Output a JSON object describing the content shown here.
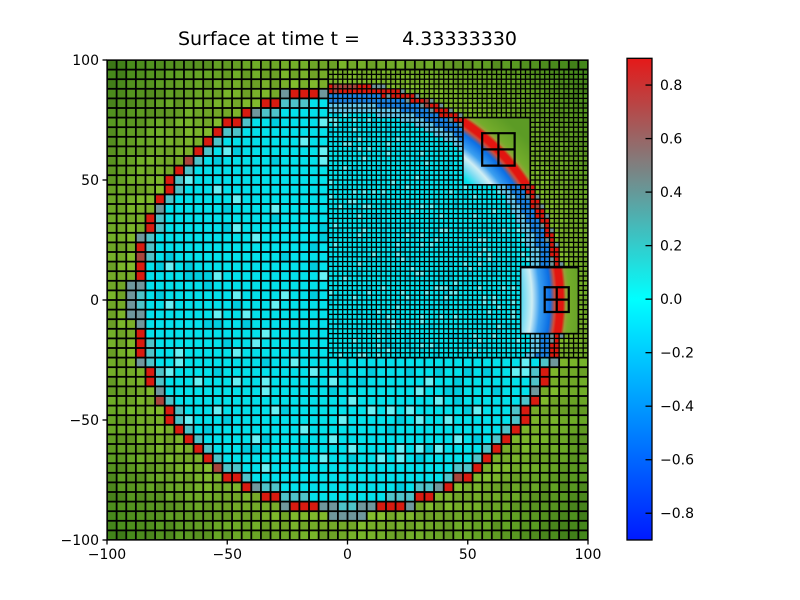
{
  "figure": {
    "title": "Surface at time t =       4.33333330",
    "background": "#ffffff"
  },
  "chart_data": {
    "type": "heatmap",
    "subtype": "adaptive-mesh-refinement pcolor plot (circular bowl / radial wave simulation)",
    "title": "Surface at time t =       4.33333330",
    "time_value": "4.33333330",
    "xlabel": "",
    "ylabel": "",
    "xlim": [
      -100,
      100
    ],
    "ylim": [
      -100,
      100
    ],
    "x_tick_values": [
      -100,
      -50,
      0,
      50,
      100
    ],
    "x_tick_labels": [
      "−100",
      "−50",
      "0",
      "50",
      "100"
    ],
    "y_tick_values": [
      100,
      50,
      0,
      -50,
      -100
    ],
    "y_tick_labels": [
      "100",
      "50",
      "0",
      "−50",
      "−100"
    ],
    "grid_on": true,
    "legend": "none",
    "refinement": {
      "coarse_cell_size": 4,
      "coarse_extent": [
        -100,
        100,
        -100,
        100
      ],
      "fine_cell_size": 2,
      "fine_extent": [
        -8,
        100,
        -24,
        96
      ],
      "smooth_patches": [
        {
          "extent": [
            48,
            76,
            48,
            76
          ]
        },
        {
          "extent": [
            72,
            96,
            -14,
            13.5
          ]
        }
      ],
      "grid_outline_squares": [
        {
          "extent": [
            56,
            69.5,
            56,
            69.5
          ]
        },
        {
          "extent": [
            82,
            92,
            -5,
            5.3
          ]
        }
      ]
    },
    "wave": {
      "center": [
        0,
        0
      ],
      "shore_outer": 90.3,
      "crest_inner": 86.2,
      "coarse_trough_inner": 83.5,
      "fine_trough_inner": 81.8,
      "fine_lead_inner": 78.0,
      "max_corner_radius": 141.4,
      "patch_gradient_stops": [
        [
          0.0,
          "#04e0ea"
        ],
        [
          0.7,
          "#04e0ea"
        ],
        [
          0.735,
          "#7adcf2"
        ],
        [
          0.768,
          "#cfeef4"
        ],
        [
          0.8,
          "#3b9ff0"
        ],
        [
          0.843,
          "#0a6ee4"
        ],
        [
          0.863,
          "#cc4f3a"
        ],
        [
          0.873,
          "#e21510"
        ],
        [
          0.897,
          "#e21510"
        ],
        [
          0.909,
          "#97a03a"
        ],
        [
          0.922,
          "#74ac2b"
        ],
        [
          1.0,
          "#5c9b25"
        ]
      ]
    },
    "colors": {
      "cyan": "#04e0ea",
      "cyan_light": "#66f0f4",
      "cyan_dark": "#00cbdd",
      "teal": "#4ec3c9",
      "trough_blue": "#1b84e4",
      "trough_light": "#62c8ec",
      "crest_red": "#d81b10",
      "crest_dark": "#a8453c",
      "shore_gray": "#6f979c",
      "land_near": "#7cb32b",
      "land_far": "#3c7d18",
      "grid_line": "#000000",
      "frame": "#000000"
    },
    "colorbar": {
      "vmin": -0.9,
      "vmax": 0.9,
      "tick_values": [
        0.8,
        0.6,
        0.4,
        0.2,
        0.0,
        -0.2,
        -0.4,
        -0.6,
        -0.8
      ],
      "tick_labels": [
        "0.8",
        "0.6",
        "0.4",
        "0.2",
        "0.0",
        "−0.2",
        "−0.4",
        "−0.6",
        "−0.8"
      ],
      "gradient_stops": [
        [
          0.0,
          "#e51919"
        ],
        [
          0.5,
          "#00ffff"
        ],
        [
          1.0,
          "#001aff"
        ]
      ]
    }
  }
}
